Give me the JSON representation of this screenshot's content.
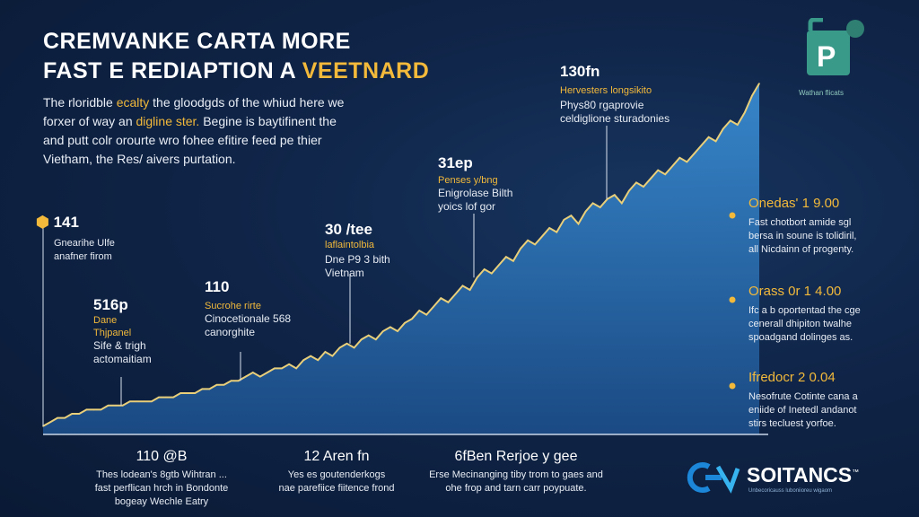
{
  "header": {
    "title_line1": "CREMVANKE CARTA MORE",
    "title_line2_prefix": "FAST E REDIAPTION A ",
    "title_line2_accent": "VEETNARD",
    "intro_line1_a": "The rloridble ",
    "intro_line1_hl": "ecalty",
    "intro_line1_b": " the gloodgds of the whiud here we",
    "intro_line2_a": "forxer of way  an ",
    "intro_line2_hl": "digline ster.",
    "intro_line2_b": " Begine is baytifinent the",
    "intro_line3": "and putt colr orourte wro fohee efitire feed pe thier",
    "intro_line4": "Vietham, the Res/ aivers purtation."
  },
  "badge": {
    "letter": "P",
    "caption": "Wathan flicats",
    "color": "#3a9a8a"
  },
  "annotations": [
    {
      "id": "a1",
      "num": "141",
      "sub": "",
      "lines": [
        "Gnearihe Ulfe",
        "anafner firom"
      ]
    },
    {
      "id": "a2",
      "num": "516p",
      "sub": "Dane",
      "sub2": "Thjpanel",
      "lines": [
        "Sife & trigh",
        "actomaitiam"
      ]
    },
    {
      "id": "a3",
      "num": "110",
      "sub": "Sucrohe rirte",
      "lines": [
        "Cinocetionale 568",
        "canorghite"
      ]
    },
    {
      "id": "a4",
      "num": "30 /tee",
      "sub": "laflaintolbia",
      "lines": [
        "Dne  P9  3 bith",
        "Vietnam"
      ]
    },
    {
      "id": "a5",
      "num": "31ep",
      "sub": "Penses y/bng",
      "lines": [
        "Enigrolase Bilth",
        "yoics lof gor"
      ]
    },
    {
      "id": "a6",
      "num": "130fn",
      "sub": "Hervesters longsikito",
      "lines": [
        "Phys80 rgaprovie",
        "celdiglione sturadonies"
      ]
    }
  ],
  "side_notes": [
    {
      "head": "Onedas' 1 9.00",
      "lines": [
        "Fast chotbort amide sgl",
        "bersa in soune is tolidiril,",
        "all Nicdainn of progenty."
      ]
    },
    {
      "head": "Orass 0r 1 4.00",
      "lines": [
        "Ifc a b oportentad the cge",
        "cenerall dhipiton twalhe",
        "spoadgand dolinges as."
      ]
    },
    {
      "head": "Ifredocr 2 0.04",
      "lines": [
        "Nesofrute Cotinte cana a",
        "eniide of Inetedl andanot",
        "stirs tecluest yorfoe."
      ]
    }
  ],
  "bottom_notes": [
    {
      "head": "110 @B",
      "lines": [
        "Thes lodean's 8gtb Wihtran ...",
        "fast perflican hrch in Bondonte",
        "bogeay Wechle Eatry"
      ]
    },
    {
      "head": "12 Aren fn",
      "lines": [
        "Yes es goutenderkogs",
        "nae parefiice fiitence frond"
      ]
    },
    {
      "head": "6fBen Rerjoe y gee",
      "lines": [
        "Erse Mecinanging tiby trom to gaes and",
        "ohe frop and tarn carr poypuate."
      ]
    }
  ],
  "brand": {
    "name": "SOITANCS",
    "tm": "™",
    "tagline": "Unbecoricauss luboniioreu wigaom"
  },
  "chart_data": {
    "type": "area",
    "title": "",
    "xlabel": "",
    "ylabel": "",
    "x": [
      0,
      1,
      2,
      3,
      4,
      5,
      6,
      7,
      8,
      9,
      10,
      11,
      12,
      13,
      14,
      15,
      16,
      17,
      18,
      19,
      20,
      21,
      22,
      23,
      24,
      25,
      26,
      27,
      28,
      29,
      30,
      31,
      32,
      33,
      34,
      35,
      36,
      37,
      38,
      39,
      40,
      41,
      42,
      43,
      44,
      45,
      46,
      47,
      48,
      49,
      50,
      51,
      52,
      53,
      54,
      55,
      56,
      57,
      58,
      59,
      60,
      61,
      62,
      63,
      64,
      65,
      66,
      67,
      68,
      69,
      70,
      71,
      72,
      73,
      74,
      75,
      76,
      77,
      78,
      79,
      80,
      81,
      82,
      83,
      84,
      85,
      86,
      87,
      88,
      89,
      90,
      91,
      92,
      93,
      94,
      95,
      96,
      97,
      98,
      99
    ],
    "values": [
      2,
      3,
      4,
      4,
      5,
      5,
      6,
      6,
      6,
      7,
      7,
      7,
      8,
      8,
      8,
      8,
      9,
      9,
      9,
      10,
      10,
      10,
      11,
      11,
      12,
      12,
      13,
      13,
      14,
      15,
      14,
      15,
      16,
      16,
      17,
      16,
      18,
      19,
      18,
      20,
      19,
      21,
      22,
      21,
      23,
      24,
      23,
      25,
      26,
      25,
      27,
      28,
      30,
      29,
      31,
      33,
      32,
      34,
      36,
      35,
      38,
      40,
      39,
      41,
      43,
      42,
      45,
      47,
      46,
      48,
      50,
      49,
      52,
      53,
      51,
      54,
      56,
      55,
      57,
      58,
      56,
      59,
      61,
      60,
      62,
      64,
      63,
      65,
      67,
      66,
      68,
      70,
      72,
      71,
      74,
      76,
      75,
      78,
      82,
      85
    ],
    "ylim": [
      0,
      90
    ],
    "line_color": "#e9cf7a",
    "fill_top": "#3a8fd6",
    "fill_bottom": "#1c4e8a"
  }
}
